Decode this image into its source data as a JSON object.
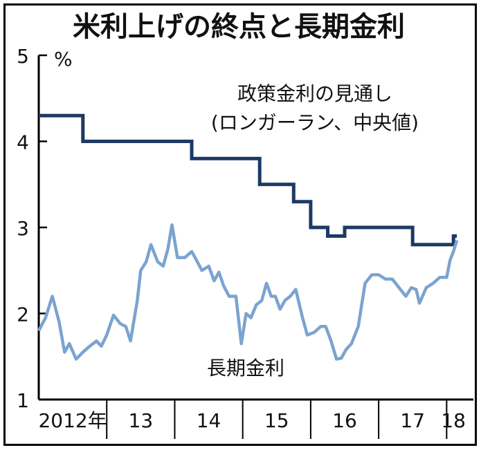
{
  "chart_data": {
    "type": "line",
    "title": "米利上げの終点と長期金利",
    "ylabel": "%",
    "ylim": [
      1,
      5
    ],
    "yticks": [
      1,
      2,
      3,
      4,
      5
    ],
    "xlim": [
      2012,
      2018.2
    ],
    "x_categories": [
      {
        "label": "2012年",
        "start": 2012,
        "end": 2013
      },
      {
        "label": "13",
        "start": 2013,
        "end": 2014
      },
      {
        "label": "14",
        "start": 2014,
        "end": 2015
      },
      {
        "label": "15",
        "start": 2015,
        "end": 2016
      },
      {
        "label": "16",
        "start": 2016,
        "end": 2017
      },
      {
        "label": "17",
        "start": 2017,
        "end": 2018
      },
      {
        "label": "18",
        "start": 2018,
        "end": 2018.2
      }
    ],
    "series": [
      {
        "name": "政策金利の見通し(ロンガーラン、中央値)",
        "label_lines": [
          "政策金利の見通し",
          "(ロンガーラン、中央値)"
        ],
        "color": "#1c3a63",
        "step": true,
        "points": [
          {
            "x": 2012.0,
            "y": 4.3
          },
          {
            "x": 2012.65,
            "y": 4.0
          },
          {
            "x": 2014.25,
            "y": 3.8
          },
          {
            "x": 2015.25,
            "y": 3.5
          },
          {
            "x": 2015.75,
            "y": 3.3
          },
          {
            "x": 2016.0,
            "y": 3.0
          },
          {
            "x": 2016.25,
            "y": 2.9
          },
          {
            "x": 2016.5,
            "y": 3.0
          },
          {
            "x": 2017.5,
            "y": 2.8
          },
          {
            "x": 2018.1,
            "y": 2.9
          },
          {
            "x": 2018.15,
            "y": 2.9
          }
        ]
      },
      {
        "name": "長期金利",
        "color": "#7ba3cf",
        "step": false,
        "points": [
          {
            "x": 2012.0,
            "y": 1.8
          },
          {
            "x": 2012.1,
            "y": 1.95
          },
          {
            "x": 2012.2,
            "y": 2.2
          },
          {
            "x": 2012.3,
            "y": 1.9
          },
          {
            "x": 2012.38,
            "y": 1.55
          },
          {
            "x": 2012.45,
            "y": 1.65
          },
          {
            "x": 2012.55,
            "y": 1.47
          },
          {
            "x": 2012.65,
            "y": 1.55
          },
          {
            "x": 2012.75,
            "y": 1.62
          },
          {
            "x": 2012.85,
            "y": 1.68
          },
          {
            "x": 2012.92,
            "y": 1.62
          },
          {
            "x": 2013.0,
            "y": 1.75
          },
          {
            "x": 2013.1,
            "y": 1.98
          },
          {
            "x": 2013.2,
            "y": 1.88
          },
          {
            "x": 2013.28,
            "y": 1.85
          },
          {
            "x": 2013.35,
            "y": 1.68
          },
          {
            "x": 2013.45,
            "y": 2.15
          },
          {
            "x": 2013.5,
            "y": 2.5
          },
          {
            "x": 2013.58,
            "y": 2.6
          },
          {
            "x": 2013.65,
            "y": 2.8
          },
          {
            "x": 2013.75,
            "y": 2.6
          },
          {
            "x": 2013.83,
            "y": 2.55
          },
          {
            "x": 2013.9,
            "y": 2.75
          },
          {
            "x": 2013.96,
            "y": 3.03
          },
          {
            "x": 2014.04,
            "y": 2.65
          },
          {
            "x": 2014.15,
            "y": 2.65
          },
          {
            "x": 2014.25,
            "y": 2.72
          },
          {
            "x": 2014.32,
            "y": 2.62
          },
          {
            "x": 2014.4,
            "y": 2.5
          },
          {
            "x": 2014.5,
            "y": 2.55
          },
          {
            "x": 2014.58,
            "y": 2.38
          },
          {
            "x": 2014.65,
            "y": 2.48
          },
          {
            "x": 2014.72,
            "y": 2.32
          },
          {
            "x": 2014.8,
            "y": 2.2
          },
          {
            "x": 2014.9,
            "y": 2.2
          },
          {
            "x": 2014.98,
            "y": 1.65
          },
          {
            "x": 2015.05,
            "y": 2.0
          },
          {
            "x": 2015.12,
            "y": 1.95
          },
          {
            "x": 2015.2,
            "y": 2.1
          },
          {
            "x": 2015.28,
            "y": 2.15
          },
          {
            "x": 2015.35,
            "y": 2.35
          },
          {
            "x": 2015.42,
            "y": 2.2
          },
          {
            "x": 2015.48,
            "y": 2.2
          },
          {
            "x": 2015.55,
            "y": 2.05
          },
          {
            "x": 2015.62,
            "y": 2.15
          },
          {
            "x": 2015.7,
            "y": 2.2
          },
          {
            "x": 2015.78,
            "y": 2.28
          },
          {
            "x": 2015.88,
            "y": 1.95
          },
          {
            "x": 2015.95,
            "y": 1.75
          },
          {
            "x": 2016.05,
            "y": 1.78
          },
          {
            "x": 2016.15,
            "y": 1.85
          },
          {
            "x": 2016.22,
            "y": 1.85
          },
          {
            "x": 2016.3,
            "y": 1.68
          },
          {
            "x": 2016.38,
            "y": 1.47
          },
          {
            "x": 2016.45,
            "y": 1.48
          },
          {
            "x": 2016.52,
            "y": 1.58
          },
          {
            "x": 2016.6,
            "y": 1.65
          },
          {
            "x": 2016.7,
            "y": 1.85
          },
          {
            "x": 2016.8,
            "y": 2.35
          },
          {
            "x": 2016.9,
            "y": 2.45
          },
          {
            "x": 2017.0,
            "y": 2.45
          },
          {
            "x": 2017.1,
            "y": 2.4
          },
          {
            "x": 2017.2,
            "y": 2.4
          },
          {
            "x": 2017.3,
            "y": 2.3
          },
          {
            "x": 2017.4,
            "y": 2.2
          },
          {
            "x": 2017.48,
            "y": 2.3
          },
          {
            "x": 2017.55,
            "y": 2.28
          },
          {
            "x": 2017.6,
            "y": 2.12
          },
          {
            "x": 2017.7,
            "y": 2.3
          },
          {
            "x": 2017.8,
            "y": 2.35
          },
          {
            "x": 2017.9,
            "y": 2.42
          },
          {
            "x": 2018.0,
            "y": 2.42
          },
          {
            "x": 2018.05,
            "y": 2.62
          },
          {
            "x": 2018.1,
            "y": 2.72
          },
          {
            "x": 2018.15,
            "y": 2.85
          }
        ]
      }
    ],
    "grid": false,
    "legend": "inline-labels"
  }
}
